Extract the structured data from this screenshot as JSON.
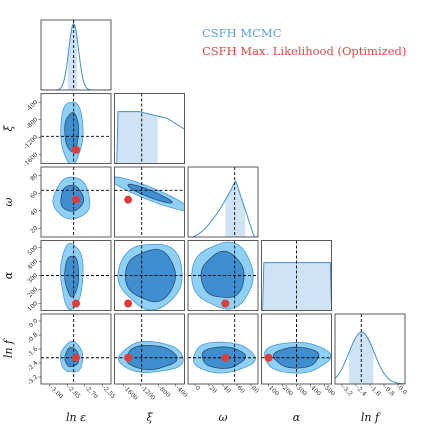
{
  "chart_data": {
    "type": "corner",
    "legend": [
      {
        "label": "CSFH MCMC",
        "color": "#5aa0d8"
      },
      {
        "label": "CSFH Max. Likelihood (Optimized)",
        "color": "#e04848"
      }
    ],
    "colors": {
      "outer": "#8fd0f5",
      "inner": "#3f8fd0",
      "hist_fill": "#cfe3f4",
      "hist_line": "#3f8fd0",
      "marker": "#e03c3c",
      "guide": "#000000"
    },
    "parameters": [
      {
        "key": "eps",
        "label": "ln ε",
        "range": [
          -3.1,
          -2.5
        ],
        "ticks": [
          "-3.00",
          "-2.85",
          "-2.70",
          "-2.55"
        ],
        "truth": -2.82,
        "ml": -2.8
      },
      {
        "key": "xi",
        "label": "ξ",
        "range": [
          -1800,
          0
        ],
        "ticks": [
          "-1600",
          "-1200",
          "-800",
          "-400"
        ],
        "truth": -1100,
        "ml": -1450
      },
      {
        "key": "omega",
        "label": "ω",
        "range": [
          0,
          90
        ],
        "ticks": [
          "0",
          "20",
          "40",
          "60",
          "80"
        ],
        "truth": 60,
        "ml": 48
      },
      {
        "key": "alpha",
        "label": "α",
        "range": [
          0,
          500
        ],
        "ticks": [
          "100",
          "200",
          "300",
          "400",
          "500"
        ],
        "truth": 250,
        "ml": 50
      },
      {
        "key": "lnf",
        "label": "ln f",
        "range": [
          -4.0,
          0.0
        ],
        "ticks": [
          "-3.2",
          "-2.4",
          "-1.6",
          "-0.8",
          "0.0"
        ],
        "truth": -2.5,
        "ml": -2.5
      }
    ],
    "row_tick_labels": {
      "xi": [
        "-400",
        "-800",
        "-1200",
        "-1600"
      ],
      "omega": [
        "80",
        "60",
        "40",
        "20"
      ],
      "alpha": [
        "500",
        "400",
        "300",
        "200",
        "100"
      ],
      "lnf": [
        "0.0",
        "-0.8",
        "-1.6",
        "-2.4",
        "-3.2"
      ]
    }
  }
}
